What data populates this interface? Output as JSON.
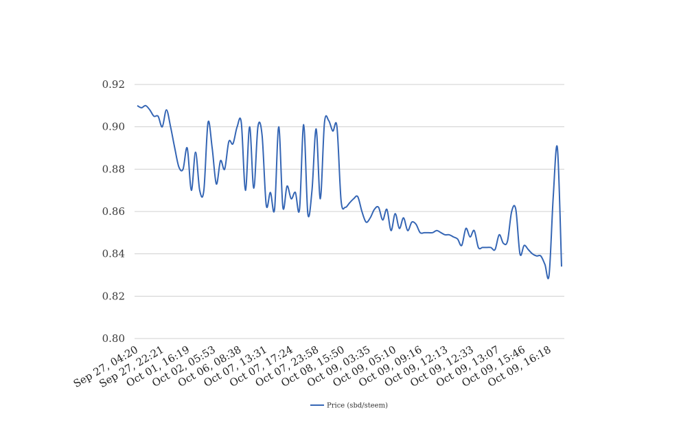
{
  "chart_data": {
    "type": "line",
    "title": "",
    "xlabel": "",
    "ylabel": "",
    "ylim": [
      0.8,
      0.92
    ],
    "yticks": [
      "0.80",
      "0.82",
      "0.84",
      "0.86",
      "0.88",
      "0.90",
      "0.92"
    ],
    "grid": true,
    "legend_position": "bottom",
    "x_tick_labels": [
      "Sep 27, 04:20",
      "Sep 27, 22:21",
      "Oct 01, 16:19",
      "Oct 02, 05:53",
      "Oct 06, 08:38",
      "Oct 07, 13:31",
      "Oct 07, 17:24",
      "Oct 07, 23:58",
      "Oct 08, 15:50",
      "Oct 09, 03:35",
      "Oct 09, 05:10",
      "Oct 09, 09:16",
      "Oct 09, 12:13",
      "Oct 09, 12:33",
      "Oct 09, 13:07",
      "Oct 09, 15:46",
      "Oct 09, 16:18"
    ],
    "series": [
      {
        "name": "Price (sbd/steem)",
        "color": "#3465b4",
        "values": [
          0.91,
          0.909,
          0.91,
          0.908,
          0.905,
          0.905,
          0.9,
          0.908,
          0.9,
          0.89,
          0.881,
          0.88,
          0.89,
          0.87,
          0.888,
          0.87,
          0.87,
          0.902,
          0.89,
          0.873,
          0.884,
          0.88,
          0.893,
          0.892,
          0.9,
          0.902,
          0.87,
          0.9,
          0.871,
          0.9,
          0.896,
          0.863,
          0.869,
          0.861,
          0.9,
          0.862,
          0.872,
          0.866,
          0.869,
          0.861,
          0.901,
          0.859,
          0.87,
          0.899,
          0.866,
          0.902,
          0.903,
          0.898,
          0.9,
          0.865,
          0.862,
          0.864,
          0.866,
          0.867,
          0.86,
          0.855,
          0.857,
          0.861,
          0.862,
          0.856,
          0.861,
          0.851,
          0.859,
          0.852,
          0.857,
          0.851,
          0.855,
          0.854,
          0.85,
          0.85,
          0.85,
          0.85,
          0.851,
          0.85,
          0.849,
          0.849,
          0.848,
          0.847,
          0.844,
          0.852,
          0.848,
          0.851,
          0.843,
          0.843,
          0.843,
          0.843,
          0.842,
          0.849,
          0.845,
          0.846,
          0.86,
          0.861,
          0.84,
          0.844,
          0.842,
          0.84,
          0.839,
          0.839,
          0.835,
          0.83,
          0.867,
          0.89,
          0.834
        ]
      }
    ]
  }
}
